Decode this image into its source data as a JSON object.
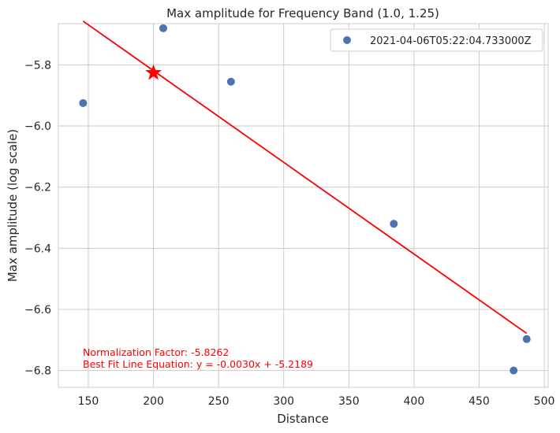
{
  "chart_data": {
    "type": "scatter",
    "title": "Max amplitude for Frequency Band (1.0, 1.25)",
    "xlabel": "Distance",
    "ylabel": "Max amplitude (log scale)",
    "xlim": [
      127,
      503
    ],
    "ylim": [
      -6.855,
      -5.665
    ],
    "x_ticks": [
      150,
      200,
      250,
      300,
      350,
      400,
      450,
      500
    ],
    "y_ticks": [
      -5.8,
      -6.0,
      -6.2,
      -6.4,
      -6.6,
      -6.8
    ],
    "x_tick_labels": [
      "150",
      "200",
      "250",
      "300",
      "350",
      "400",
      "450",
      "500"
    ],
    "y_tick_labels": [
      "−5.8",
      "−6.0",
      "−6.2",
      "−6.4",
      "−6.6",
      "−6.8"
    ],
    "grid": true,
    "legend_position": "top-right",
    "series": [
      {
        "name": "2021-04-06T05:22:04.733000Z",
        "color": "#4c72b0",
        "x": [
          146,
          207.5,
          259.5,
          384.5,
          476.5,
          486.5
        ],
        "y": [
          -5.925,
          -5.68,
          -5.855,
          -6.32,
          -6.8,
          -6.697
        ]
      }
    ],
    "fit_line": {
      "slope": -0.003,
      "intercept": -5.2189,
      "x_range": [
        146,
        486.5
      ],
      "color": "#ff0000"
    },
    "reference_point": {
      "x": 200,
      "y": -5.8262,
      "color": "#ff0000"
    },
    "annotations": [
      "Normalization Factor: -5.8262",
      "Best Fit Line Equation: y = -0.0030x + -5.2189"
    ]
  }
}
